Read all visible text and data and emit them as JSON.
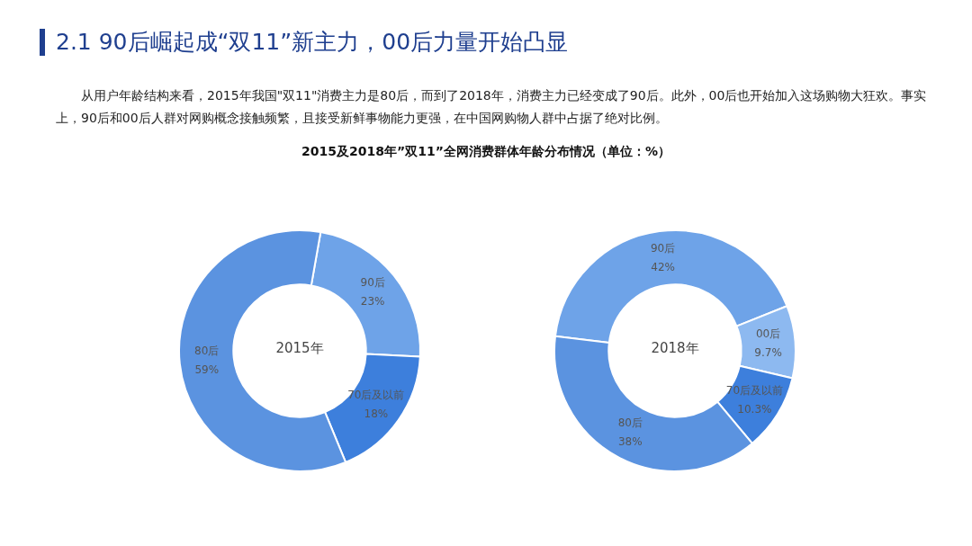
{
  "chart_data": [
    {
      "type": "donut",
      "title": "2015年",
      "annotations": [
        "2.1 90后崛起成“双11”新主力，00后力量开始凸显",
        "从用户年龄结构来看，2015年我国\"双11\"消费主力是80后，而到了2018年，消费主力已经变成了90后。此外，00后也开始加入这场购物大狂欢。事实上，90后和00后人群对网购概念接触频繁，且接受新鲜事物能力更强，在中国网购物人群中占据了绝对比例。",
        "2015及2018年”双11”全网消费群体年龄分布情况（单位：%）"
      ],
      "categories": [
        "90后",
        "70后及以前",
        "80后"
      ],
      "values": [
        23,
        18,
        59
      ],
      "value_labels": [
        "23%",
        "18%",
        "59%"
      ],
      "colors": [
        "#6ea3e8",
        "#3d7fdc",
        "#5b93e0"
      ]
    },
    {
      "type": "donut",
      "title": "2018年",
      "categories": [
        "90后",
        "00后",
        "70后及以前",
        "80后"
      ],
      "values": [
        42,
        9.7,
        10.3,
        38
      ],
      "value_labels": [
        "42%",
        "9.7%",
        "10.3%",
        "38%"
      ],
      "colors": [
        "#6ea3e8",
        "#8db9f0",
        "#3d7fdc",
        "#5b93e0"
      ]
    }
  ]
}
